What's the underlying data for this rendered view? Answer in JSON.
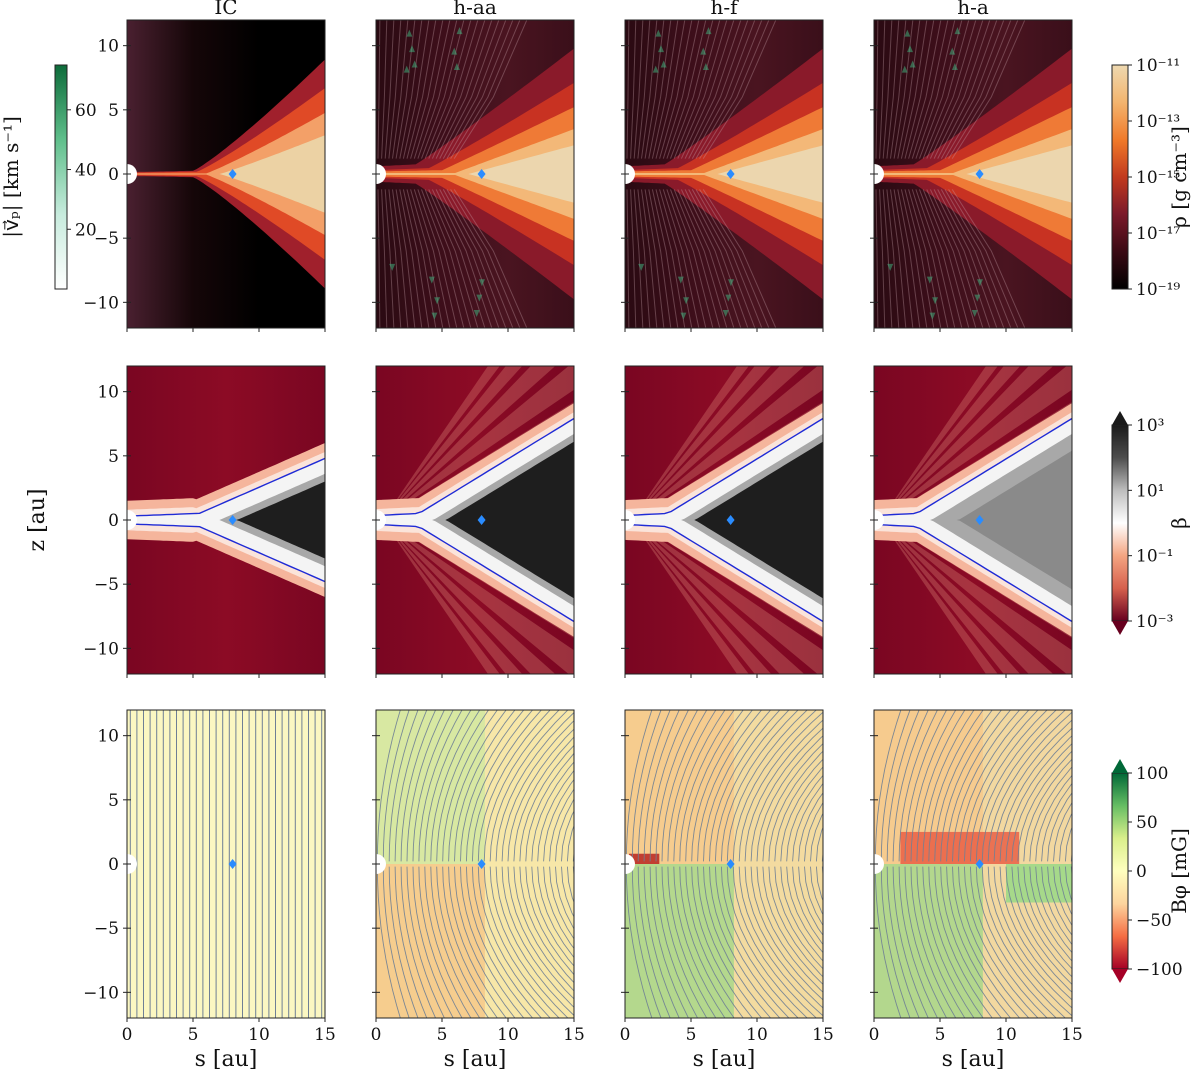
{
  "chart_data": {
    "type": "heatmap",
    "layout": "3 rows x 4 columns",
    "columns": [
      "IC",
      "h-aa",
      "h-f",
      "h-a"
    ],
    "xlabel": "s [au]",
    "ylabel": "z [au]",
    "xlim": [
      0,
      15
    ],
    "ylim": [
      -12,
      12
    ],
    "xticks": [
      0,
      5,
      10,
      15
    ],
    "yticks": [
      -10,
      -5,
      0,
      5,
      10
    ],
    "marker": {
      "s": 8,
      "z": 0,
      "color": "#2a8cff",
      "shape": "diamond"
    },
    "rows": [
      {
        "quantity": "density",
        "colorbar_label": "ρ [g cm⁻³]",
        "colorbar_scale": "log",
        "colorbar_ticks": [
          "10⁻¹¹",
          "10⁻¹³",
          "10⁻¹⁵",
          "10⁻¹⁷",
          "10⁻¹⁹"
        ],
        "colormap": [
          "#000000",
          "#3a0a14",
          "#7a1a2a",
          "#c23a1e",
          "#f07a2a",
          "#f3b46e",
          "#eed9b0"
        ],
        "overlay": "poloidal velocity arrows",
        "secondary_colorbar_label": "|v⃗ₚ| [km s⁻¹]",
        "secondary_colorbar_ticks": [
          "60",
          "40",
          "20"
        ],
        "secondary_colorbar_range": [
          0,
          75
        ],
        "secondary_colormap": [
          "#ffffff",
          "#c7ebdd",
          "#5fbf8b",
          "#0d6b3a"
        ]
      },
      {
        "quantity": "plasma beta",
        "colorbar_label": "β",
        "colorbar_scale": "log",
        "colorbar_ticks": [
          "10³",
          "10¹",
          "10⁻¹",
          "10⁻³"
        ],
        "colormap": [
          "#67001f",
          "#d6604d",
          "#f4a582",
          "#ffffff",
          "#bdbdbd",
          "#4d4d4d",
          "#1a1a1a"
        ],
        "overlay": "β = 1 contour",
        "contour_color": "#1f2bd6"
      },
      {
        "quantity": "toroidal field",
        "colorbar_label": "Bφ [mG]",
        "colorbar_scale": "linear",
        "colorbar_ticks": [
          "100",
          "50",
          "0",
          "−50",
          "−100"
        ],
        "colorbar_range": [
          -100,
          100
        ],
        "colormap": [
          "#a50026",
          "#f46d43",
          "#fdd49e",
          "#ffffbf",
          "#d9ef8b",
          "#66bd63",
          "#006837"
        ],
        "overlay": "poloidal field lines",
        "line_color": "#6f7f95"
      }
    ]
  }
}
